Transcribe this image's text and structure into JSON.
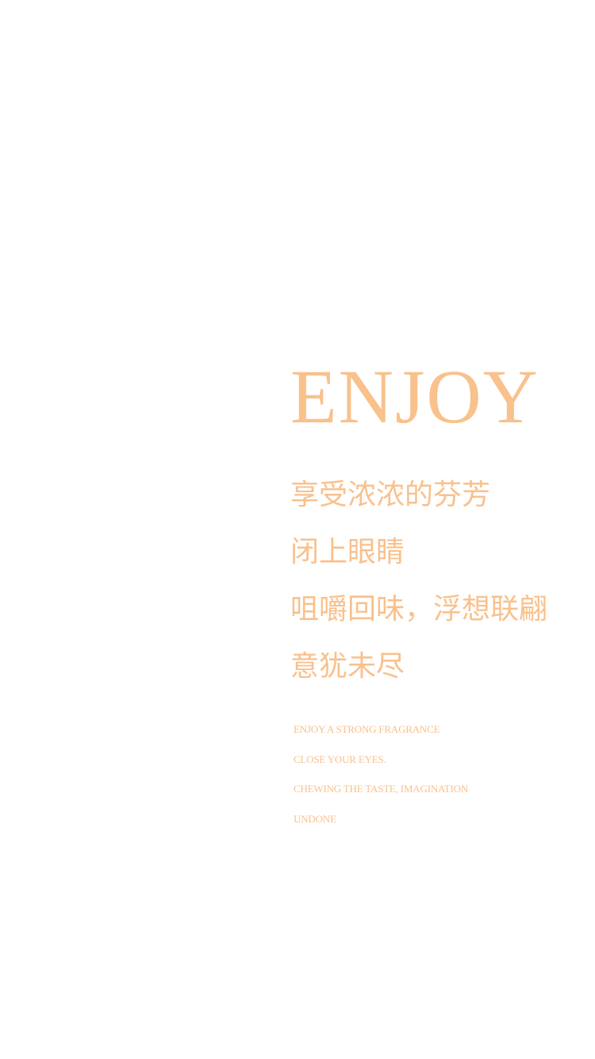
{
  "title": "ENJOY",
  "chinese_lines": [
    "享受浓浓的芬芳",
    "闭上眼睛",
    "咀嚼回味，浮想联翩",
    "意犹未尽"
  ],
  "english_lines": [
    "ENJOY A STRONG FRAGRANCE",
    "CLOSE YOUR EYES.",
    "CHEWING THE TASTE, IMAGINATION",
    "UNDONE"
  ],
  "colors": {
    "accent": "#f9c18c",
    "background": "#ffffff"
  }
}
